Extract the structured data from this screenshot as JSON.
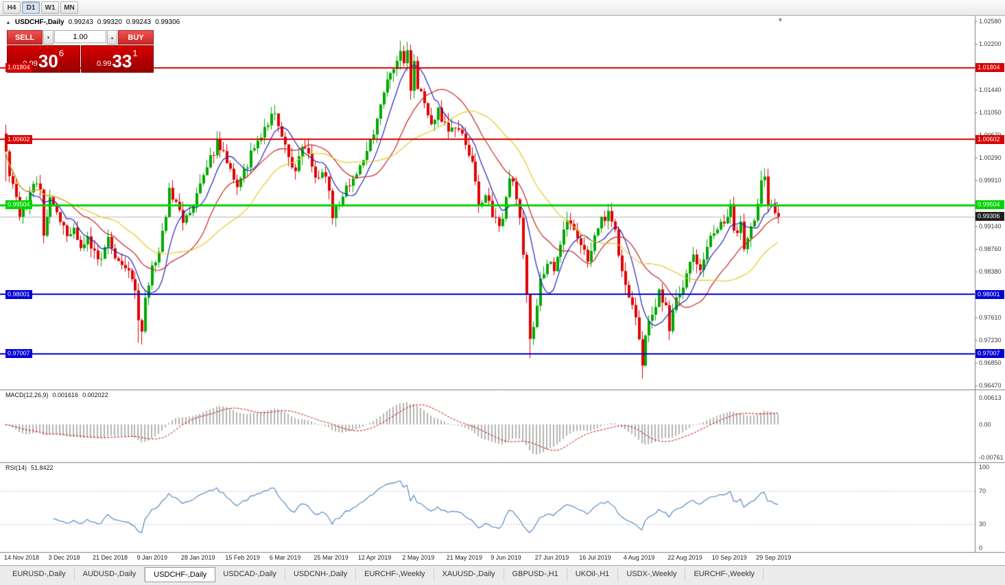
{
  "icons": {
    "one_click_toggle": "▲",
    "shift_marker": "▼",
    "spin_up": "▴",
    "spin_down": "▾"
  },
  "colors": {
    "bull": "#00a800",
    "bear": "#e00000",
    "ma_blue": "#2020c0",
    "ma_red": "#cc2020",
    "ma_yellow": "#e6c820",
    "macd_hist": "#b4b4b4",
    "macd_signal": "#cc0000",
    "rsi": "#4a7ebb",
    "rsi_levels": "#c0c0dc",
    "bid_line": "#b9b9b9",
    "axis_text": "#3a3a3a",
    "separator": "#808080",
    "price_box_bg": "#1f1f1f"
  },
  "toolbar": {
    "timeframes": [
      {
        "label": "H4",
        "active": false
      },
      {
        "label": "D1",
        "active": true
      },
      {
        "label": "W1",
        "active": false
      },
      {
        "label": "MN",
        "active": false
      }
    ]
  },
  "chart_header": {
    "symbol": "USDCHF-,Daily",
    "open": "0.99243",
    "high": "0.99320",
    "low": "0.99243",
    "close": "0.99306"
  },
  "trade_panel": {
    "sell_label": "SELL",
    "buy_label": "BUY",
    "volume": "1.00",
    "sell_price": {
      "prefix": "0.99",
      "big": "30",
      "sup": "6"
    },
    "buy_price": {
      "prefix": "0.99",
      "big": "33",
      "sup": "1"
    }
  },
  "current_price": {
    "label": "0.99306",
    "value": 0.99306
  },
  "price_scale": {
    "ticks": [
      {
        "label": "1.02580",
        "value": 1.0258
      },
      {
        "label": "1.02200",
        "value": 1.022
      },
      {
        "label": "1.01820",
        "value": 1.0182
      },
      {
        "label": "1.01440",
        "value": 1.0144
      },
      {
        "label": "1.01050",
        "value": 1.0105
      },
      {
        "label": "1.00670",
        "value": 1.0067
      },
      {
        "label": "1.00290",
        "value": 1.0029
      },
      {
        "label": "0.99910",
        "value": 0.9991
      },
      {
        "label": "0.99520",
        "value": 0.9952
      },
      {
        "label": "0.99140",
        "value": 0.9914
      },
      {
        "label": "0.98760",
        "value": 0.9876
      },
      {
        "label": "0.98380",
        "value": 0.9838
      },
      {
        "label": "0.98000",
        "value": 0.98
      },
      {
        "label": "0.97610",
        "value": 0.9761
      },
      {
        "label": "0.97230",
        "value": 0.9723
      },
      {
        "label": "0.96850",
        "value": 0.9685
      },
      {
        "label": "0.96470",
        "value": 0.9647
      }
    ]
  },
  "macd_panel": {
    "title": "MACD(12,26,9)",
    "value_main": "0.001616",
    "value_signal": "0.002022",
    "axis": [
      {
        "label": "0.00613",
        "value": 0.00613
      },
      {
        "label": "0.00",
        "value": 0
      },
      {
        "label": "-0.00761",
        "value": -0.00761
      }
    ]
  },
  "rsi_panel": {
    "title": "RSI(14)",
    "value": "51.8422",
    "levels": [
      70,
      30
    ],
    "axis": [
      {
        "label": "100",
        "value": 100
      },
      {
        "label": "70",
        "value": 70
      },
      {
        "label": "30",
        "value": 30
      },
      {
        "label": "0",
        "value": 0
      }
    ]
  },
  "tabs": {
    "items": [
      {
        "label": "EURUSD-,Daily",
        "active": false
      },
      {
        "label": "AUDUSD-,Daily",
        "active": false
      },
      {
        "label": "USDCHF-,Daily",
        "active": true
      },
      {
        "label": "USDCAD-,Daily",
        "active": false
      },
      {
        "label": "USDCNH-,Daily",
        "active": false
      },
      {
        "label": "EURCHF-,Weekly",
        "active": false
      },
      {
        "label": "XAUUSD-,Daily",
        "active": false
      },
      {
        "label": "GBPUSD-,H1",
        "active": false
      },
      {
        "label": "UKOil-,H1",
        "active": false
      },
      {
        "label": "USDX-,Weekly",
        "active": false
      },
      {
        "label": "EURCHF-,Weekly",
        "active": false
      }
    ]
  },
  "chart_data": {
    "type": "candlestick",
    "symbol": "USDCHF",
    "timeframe": "Daily",
    "title": "USDCHF-,Daily",
    "price_axis_range": [
      0.9644,
      1.0262
    ],
    "x_labels": [
      "14 Nov 2018",
      "3 Dec 2018",
      "21 Dec 2018",
      "9 Jan 2019",
      "28 Jan 2019",
      "15 Feb 2019",
      "6 Mar 2019",
      "25 Mar 2019",
      "12 Apr 2019",
      "2 May 2019",
      "21 May 2019",
      "9 Jun 2019",
      "27 Jun 2019",
      "16 Jul 2019",
      "4 Aug 2019",
      "22 Aug 2019",
      "10 Sep 2019",
      "29 Sep 2019"
    ],
    "candles_per_label": 13,
    "num_candles": 228,
    "last_ohlc": {
      "open": 0.99243,
      "high": 0.9932,
      "low": 0.99243,
      "close": 0.99306
    },
    "close_keypoints": [
      [
        0,
        1.004
      ],
      [
        1,
        1.0005
      ],
      [
        2,
        0.9985
      ],
      [
        4,
        0.9932
      ],
      [
        6,
        0.9952
      ],
      [
        8,
        0.9986
      ],
      [
        10,
        0.9974
      ],
      [
        11,
        0.9896
      ],
      [
        13,
        0.9962
      ],
      [
        15,
        0.9938
      ],
      [
        17,
        0.9915
      ],
      [
        18,
        0.9898
      ],
      [
        20,
        0.9916
      ],
      [
        22,
        0.9878
      ],
      [
        24,
        0.9896
      ],
      [
        26,
        0.9868
      ],
      [
        28,
        0.9856
      ],
      [
        30,
        0.9896
      ],
      [
        32,
        0.9868
      ],
      [
        34,
        0.9848
      ],
      [
        36,
        0.9836
      ],
      [
        38,
        0.9812
      ],
      [
        39,
        0.9762
      ],
      [
        40,
        0.9744
      ],
      [
        41,
        0.9792
      ],
      [
        43,
        0.9846
      ],
      [
        45,
        0.9872
      ],
      [
        47,
        0.9936
      ],
      [
        48,
        0.9976
      ],
      [
        50,
        0.9954
      ],
      [
        52,
        0.9926
      ],
      [
        54,
        0.9936
      ],
      [
        56,
        0.9964
      ],
      [
        58,
        0.9996
      ],
      [
        60,
        1.0026
      ],
      [
        62,
        1.0056
      ],
      [
        64,
        1.0034
      ],
      [
        66,
        1.001
      ],
      [
        68,
        0.9986
      ],
      [
        70,
        1.0006
      ],
      [
        72,
        1.0036
      ],
      [
        74,
        1.0058
      ],
      [
        76,
        1.0082
      ],
      [
        78,
        1.01
      ],
      [
        79,
        1.0108
      ],
      [
        81,
        1.0068
      ],
      [
        83,
        1.003
      ],
      [
        85,
        1.0008
      ],
      [
        87,
        1.0042
      ],
      [
        88,
        1.0052
      ],
      [
        90,
        1.0012
      ],
      [
        92,
        0.9992
      ],
      [
        94,
        1.0004
      ],
      [
        96,
        0.9932
      ],
      [
        98,
        0.9956
      ],
      [
        100,
        0.9976
      ],
      [
        102,
        0.9992
      ],
      [
        104,
        1.0016
      ],
      [
        106,
        1.0042
      ],
      [
        108,
        1.0076
      ],
      [
        110,
        1.0122
      ],
      [
        112,
        1.0162
      ],
      [
        114,
        1.0186
      ],
      [
        116,
        1.0206
      ],
      [
        117,
        1.0196
      ],
      [
        118,
        1.0212
      ],
      [
        119,
        1.0146
      ],
      [
        120,
        1.0186
      ],
      [
        121,
        1.0152
      ],
      [
        123,
        1.0122
      ],
      [
        125,
        1.0092
      ],
      [
        127,
        1.0106
      ],
      [
        129,
        1.0086
      ],
      [
        131,
        1.0072
      ],
      [
        133,
        1.0082
      ],
      [
        135,
        1.0046
      ],
      [
        137,
        1.0022
      ],
      [
        138,
        0.9992
      ],
      [
        139,
        0.9942
      ],
      [
        141,
        0.9966
      ],
      [
        143,
        0.9936
      ],
      [
        145,
        0.9912
      ],
      [
        147,
        0.9956
      ],
      [
        148,
        1.0
      ],
      [
        149,
        0.9992
      ],
      [
        151,
        0.9932
      ],
      [
        152,
        0.9872
      ],
      [
        153,
        0.9792
      ],
      [
        154,
        0.9726
      ],
      [
        155,
        0.9752
      ],
      [
        157,
        0.9822
      ],
      [
        159,
        0.9858
      ],
      [
        161,
        0.9836
      ],
      [
        163,
        0.9882
      ],
      [
        165,
        0.9932
      ],
      [
        167,
        0.9912
      ],
      [
        169,
        0.9882
      ],
      [
        171,
        0.9858
      ],
      [
        173,
        0.9892
      ],
      [
        175,
        0.9926
      ],
      [
        177,
        0.9936
      ],
      [
        179,
        0.9906
      ],
      [
        180,
        0.9872
      ],
      [
        182,
        0.9822
      ],
      [
        184,
        0.9782
      ],
      [
        186,
        0.9726
      ],
      [
        187,
        0.9682
      ],
      [
        188,
        0.9726
      ],
      [
        190,
        0.9772
      ],
      [
        192,
        0.9802
      ],
      [
        194,
        0.9786
      ],
      [
        195,
        0.9736
      ],
      [
        196,
        0.9776
      ],
      [
        198,
        0.9802
      ],
      [
        200,
        0.9836
      ],
      [
        202,
        0.9866
      ],
      [
        204,
        0.9846
      ],
      [
        206,
        0.9882
      ],
      [
        208,
        0.9906
      ],
      [
        210,
        0.9922
      ],
      [
        212,
        0.9926
      ],
      [
        213,
        0.9956
      ],
      [
        214,
        0.9906
      ],
      [
        216,
        0.9916
      ],
      [
        217,
        0.9876
      ],
      [
        219,
        0.9912
      ],
      [
        221,
        0.9946
      ],
      [
        222,
        0.9986
      ],
      [
        223,
        0.9992
      ],
      [
        224,
        0.9952
      ],
      [
        226,
        0.9942
      ],
      [
        227,
        0.99306
      ]
    ],
    "noise_amplitude": 0.0008,
    "wick_overrides": [
      {
        "i": 0,
        "high": 1.0085,
        "low": 0.999
      },
      {
        "i": 39,
        "low": 0.9719
      },
      {
        "i": 40,
        "low": 0.9716
      },
      {
        "i": 116,
        "high": 1.0226
      },
      {
        "i": 118,
        "high": 1.0224
      },
      {
        "i": 154,
        "low": 0.9693
      },
      {
        "i": 187,
        "low": 0.9659
      },
      {
        "i": 222,
        "high": 1.0008
      }
    ],
    "moving_averages": [
      {
        "period": 8,
        "color": "#2020c0"
      },
      {
        "period": 20,
        "color": "#cc2020"
      },
      {
        "period": 34,
        "color": "#e6c820"
      }
    ],
    "horizontal_lines": [
      {
        "label": "1.01804",
        "value": 1.01804,
        "color": "#d80000",
        "width": 2
      },
      {
        "label": "1.00602",
        "value": 1.00602,
        "color": "#d80000",
        "width": 2
      },
      {
        "label": "0.99504",
        "value": 0.99504,
        "color": "#00d400",
        "width": 3
      },
      {
        "label": "0.98001",
        "value": 0.98001,
        "color": "#0000d8",
        "width": 2
      },
      {
        "label": "0.97007",
        "value": 0.97007,
        "color": "#0000d8",
        "width": 2
      }
    ],
    "indicators": [
      {
        "type": "MACD",
        "fast": 12,
        "slow": 26,
        "signal": 9,
        "current": [
          0.001616,
          0.002022
        ]
      },
      {
        "type": "RSI",
        "period": 14,
        "current": 51.8422
      }
    ]
  }
}
